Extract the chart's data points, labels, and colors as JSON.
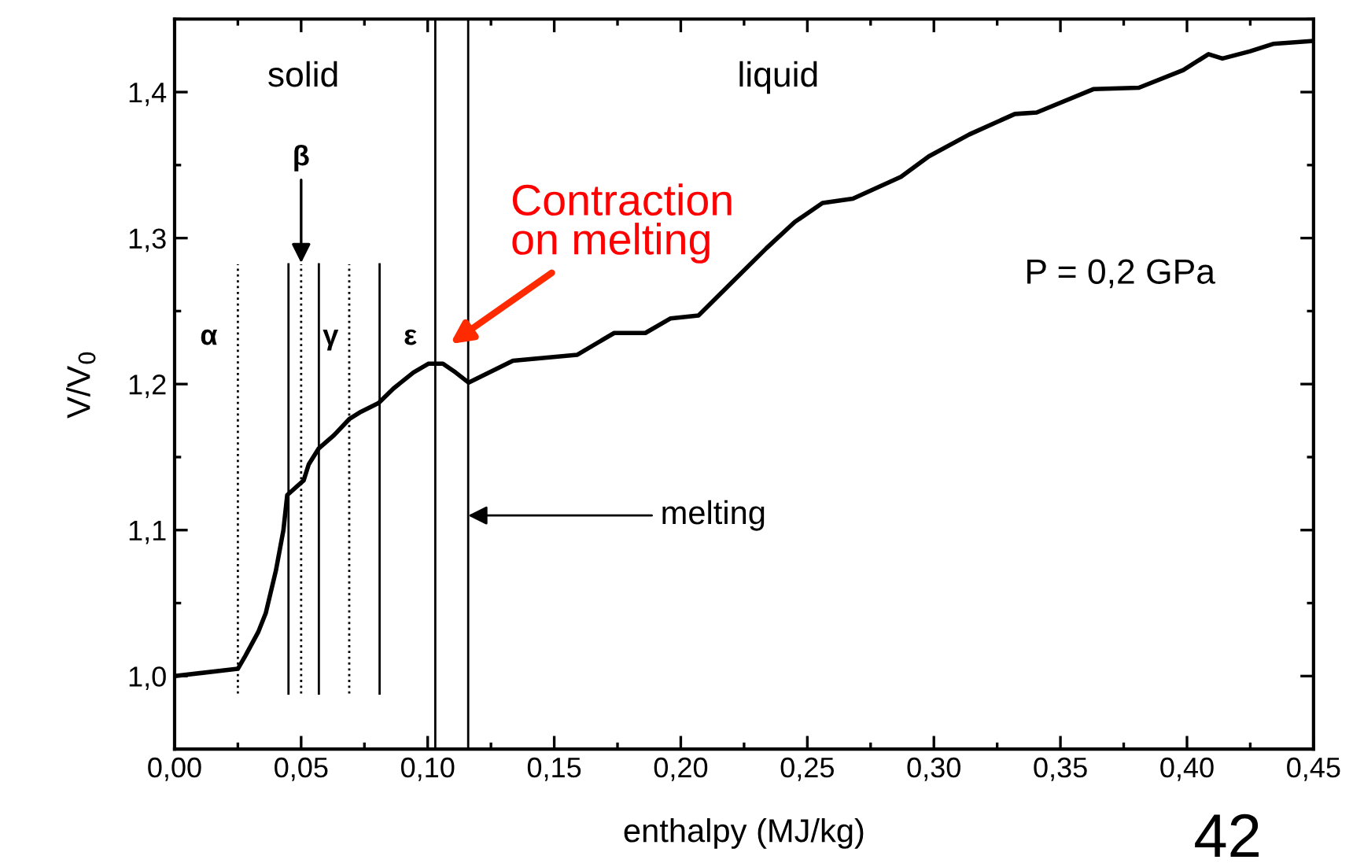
{
  "chart_data": {
    "type": "line",
    "xlabel": "enthalpy (MJ/kg)",
    "ylabel": "V/V$_{0}$",
    "x": [
      0.0,
      0.025,
      0.028,
      0.033,
      0.036,
      0.04,
      0.043,
      0.0445,
      0.051,
      0.053,
      0.057,
      0.063,
      0.069,
      0.0736,
      0.0806,
      0.0865,
      0.0944,
      0.1004,
      0.106,
      0.111,
      0.1162,
      0.1337,
      0.159,
      0.1737,
      0.186,
      0.196,
      0.207,
      0.2204,
      0.2338,
      0.245,
      0.256,
      0.268,
      0.287,
      0.298,
      0.314,
      0.332,
      0.3406,
      0.363,
      0.381,
      0.3985,
      0.4085,
      0.414,
      0.425,
      0.434,
      0.45
    ],
    "series": [
      {
        "color": "#000000",
        "values": [
          1.0,
          1.005,
          1.014,
          1.03,
          1.043,
          1.072,
          1.1,
          1.124,
          1.134,
          1.145,
          1.156,
          1.165,
          1.176,
          1.181,
          1.187,
          1.197,
          1.208,
          1.214,
          1.214,
          1.208,
          1.201,
          1.216,
          1.22,
          1.235,
          1.235,
          1.245,
          1.247,
          1.27,
          1.293,
          1.311,
          1.324,
          1.327,
          1.342,
          1.356,
          1.371,
          1.385,
          1.386,
          1.402,
          1.403,
          1.415,
          1.426,
          1.423,
          1.428,
          1.433,
          1.435
        ]
      }
    ],
    "xlim": [
      0,
      0.45
    ],
    "ylim": [
      0.95,
      1.45
    ],
    "xticks": [
      {
        "value": 0,
        "label": "0,00"
      },
      {
        "value": 0.05,
        "label": "0,05"
      },
      {
        "value": 0.1,
        "label": "0,10"
      },
      {
        "value": 0.15,
        "label": "0,15"
      },
      {
        "value": 0.2,
        "label": "0,20"
      },
      {
        "value": 0.25,
        "label": "0,25"
      },
      {
        "value": 0.3,
        "label": "0,30"
      },
      {
        "value": 0.35,
        "label": "0,35"
      },
      {
        "value": 0.4,
        "label": "0,40"
      },
      {
        "value": 0.45,
        "label": "0,45"
      }
    ],
    "yticks": [
      {
        "value": 1.0,
        "label": "1,0"
      },
      {
        "value": 1.1,
        "label": "1,1"
      },
      {
        "value": 1.2,
        "label": "1,2"
      },
      {
        "value": 1.3,
        "label": "1,3"
      },
      {
        "value": 1.4,
        "label": "1,4"
      }
    ],
    "ref_lines": [
      {
        "axis": "x",
        "value": 0.025,
        "line_style": "dotted"
      },
      {
        "axis": "x",
        "value": 0.045,
        "line_style": "solid"
      },
      {
        "axis": "x",
        "value": 0.05,
        "line_style": "dotted"
      },
      {
        "axis": "x",
        "value": 0.057,
        "line_style": "solid"
      },
      {
        "axis": "x",
        "value": 0.069,
        "line_style": "dotted"
      },
      {
        "axis": "x",
        "value": 0.081,
        "line_style": "solid"
      },
      {
        "axis": "x",
        "value": 0.103,
        "line_style": "solid"
      },
      {
        "axis": "x",
        "value": 0.116,
        "line_style": "solid"
      }
    ],
    "annotations": [
      "solid",
      "liquid",
      "α",
      "γ",
      "ε",
      "P = 0,2 GPa",
      {
        "text": "β",
        "x": 0.05,
        "y": 1.283
      },
      "Contraction\non melting",
      {
        "text": "melting",
        "x": 0.116,
        "y": 1.11
      },
      "42"
    ],
    "grid": false
  }
}
